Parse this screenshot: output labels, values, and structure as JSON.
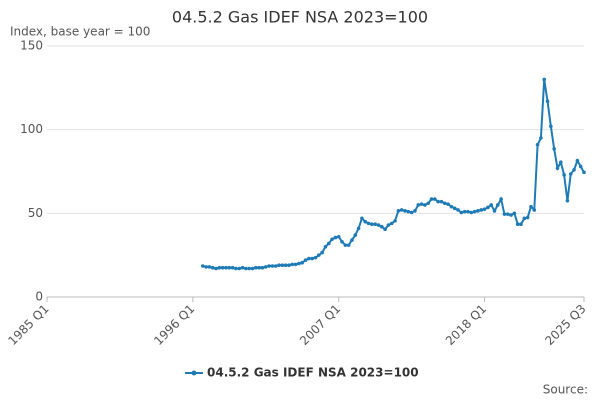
{
  "chart_data": {
    "type": "line",
    "title": "04.5.2 Gas IDEF NSA 2023=100",
    "y_label": "Index, base year = 100",
    "source": "Source:",
    "categories": [
      "1985 Q1",
      null,
      null,
      null,
      null,
      null,
      null,
      null,
      null,
      null,
      null,
      null,
      null,
      null,
      null,
      null,
      null,
      null,
      null,
      null,
      null,
      null,
      null,
      null,
      null,
      null,
      null,
      null,
      null,
      null,
      null,
      null,
      null,
      null,
      null,
      null,
      null,
      null,
      null,
      null,
      null,
      null,
      null,
      null,
      "1996 Q1",
      null,
      null,
      null,
      null,
      null,
      null,
      null,
      null,
      null,
      null,
      null,
      null,
      null,
      null,
      null,
      null,
      null,
      null,
      null,
      null,
      null,
      null,
      null,
      null,
      null,
      null,
      null,
      null,
      null,
      null,
      null,
      null,
      null,
      null,
      null,
      null,
      null,
      null,
      null,
      null,
      null,
      null,
      null,
      "2007 Q1",
      null,
      null,
      null,
      null,
      null,
      null,
      null,
      null,
      null,
      null,
      null,
      null,
      null,
      null,
      null,
      null,
      null,
      null,
      null,
      null,
      null,
      null,
      null,
      null,
      null,
      null,
      null,
      null,
      null,
      null,
      null,
      null,
      null,
      null,
      null,
      null,
      null,
      null,
      null,
      null,
      null,
      null,
      null,
      "2018 Q1",
      null,
      null,
      null,
      null,
      null,
      null,
      null,
      null,
      null,
      null,
      null,
      null,
      null,
      null,
      null,
      null,
      null,
      null,
      null,
      null,
      null,
      null,
      null,
      null,
      null,
      null,
      null,
      null,
      null,
      "2025 Q3"
    ],
    "series": [
      {
        "name": "04.5.2 Gas IDEF NSA 2023=100",
        "color": "#1f7bb6",
        "values": [
          null,
          null,
          null,
          null,
          null,
          null,
          null,
          null,
          null,
          null,
          null,
          null,
          null,
          null,
          null,
          null,
          null,
          null,
          null,
          null,
          null,
          null,
          null,
          null,
          null,
          null,
          null,
          null,
          null,
          null,
          null,
          null,
          null,
          null,
          null,
          null,
          null,
          null,
          null,
          null,
          null,
          null,
          null,
          null,
          null,
          null,
          null,
          18.5,
          18,
          18,
          17.5,
          17,
          17.5,
          17.5,
          17.5,
          17.5,
          17.5,
          17,
          17,
          17.5,
          17,
          17,
          17,
          17.5,
          17.5,
          17.5,
          18,
          18.5,
          18.5,
          18.5,
          19,
          19,
          19,
          19,
          19.5,
          19.5,
          20,
          20.5,
          22,
          23,
          23,
          23.5,
          25,
          26.5,
          30,
          32,
          34.5,
          35.5,
          36,
          33,
          31,
          31,
          34,
          37,
          41,
          47,
          45,
          44,
          43.5,
          43.5,
          43,
          42,
          40.5,
          43,
          44,
          45.5,
          51.5,
          52,
          51.5,
          51,
          50.5,
          51.5,
          55,
          55.5,
          55,
          56,
          58.5,
          58.5,
          57,
          57,
          56,
          55.5,
          54,
          53,
          52,
          50.5,
          51,
          51,
          50.5,
          51,
          51.5,
          52,
          52.5,
          53.5,
          55,
          51.5,
          55,
          58.5,
          49.5,
          49.5,
          49,
          50,
          43.5,
          43.5,
          47,
          47.5,
          54,
          52,
          91,
          95,
          130,
          117,
          102,
          88.5,
          77,
          80.5,
          73,
          57.5,
          73.5,
          76,
          81.5,
          78,
          74.5
        ]
      }
    ],
    "ylim": [
      0,
      150
    ],
    "yticks": [
      0,
      50,
      100,
      150
    ],
    "grid": true
  }
}
